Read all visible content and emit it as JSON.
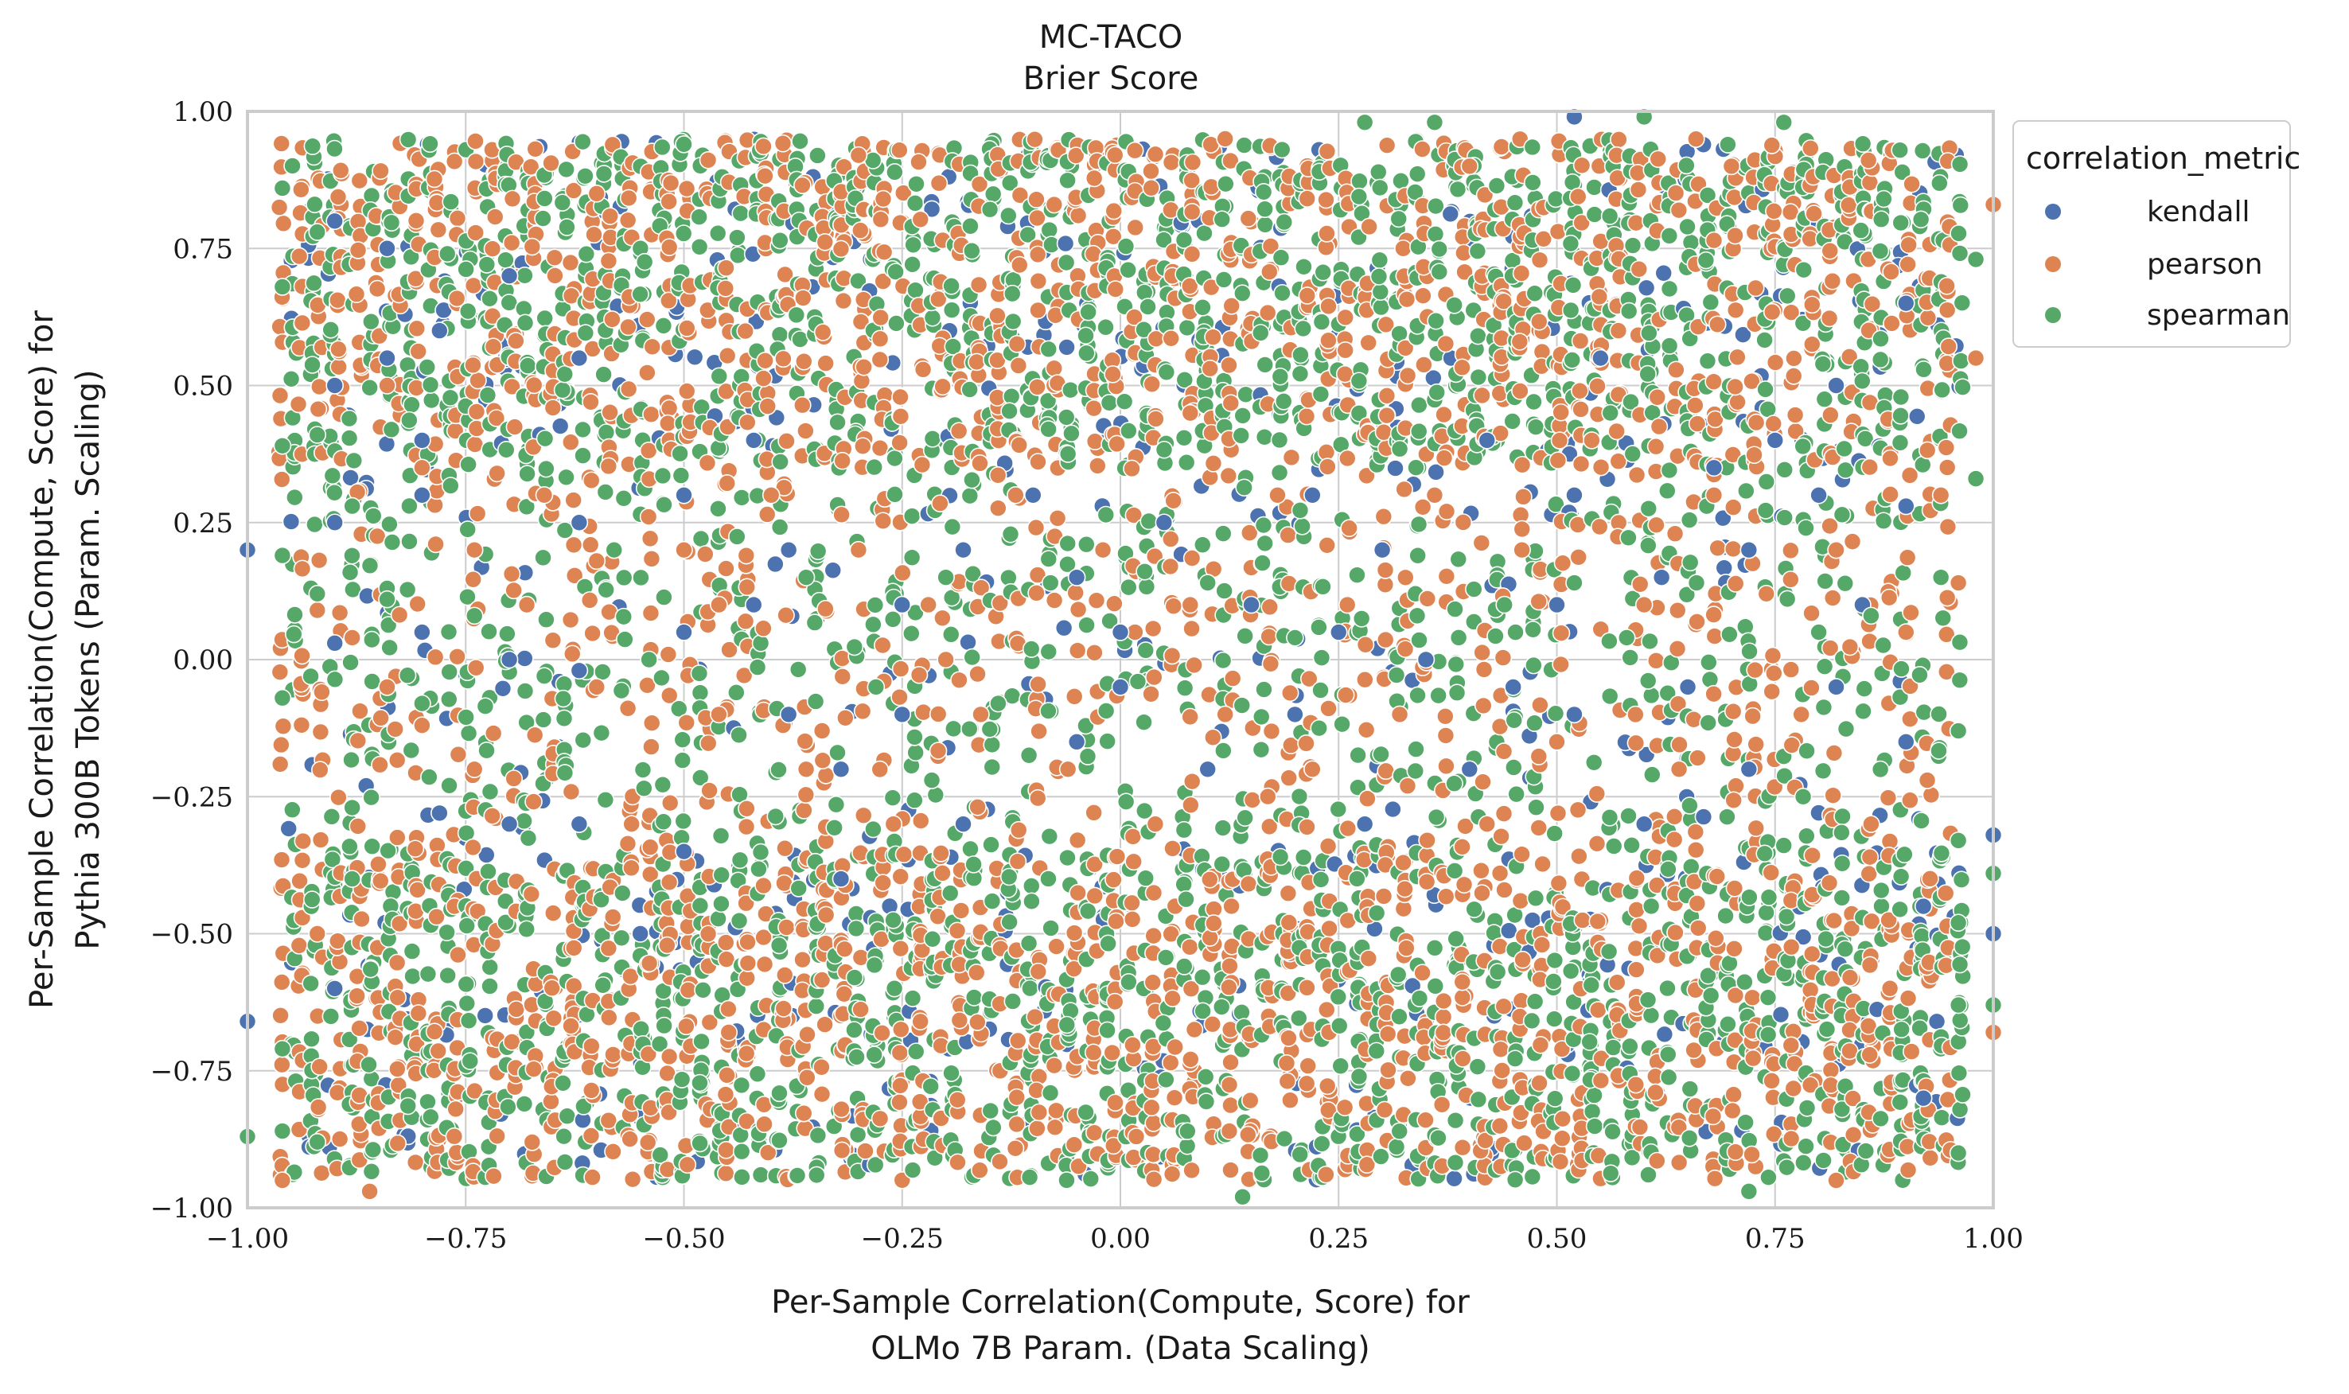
{
  "chart_data": {
    "type": "scatter",
    "title": "MC-TACO",
    "subtitle": "Brier Score",
    "xlabel_lines": [
      "Per-Sample Correlation(Compute, Score) for",
      "OLMo 7B Param. (Data Scaling)"
    ],
    "ylabel_lines": [
      "Per-Sample Correlation(Compute, Score) for",
      "Pythia 300B Tokens (Param. Scaling)"
    ],
    "xlim": [
      -1.0,
      1.0
    ],
    "ylim": [
      -1.0,
      1.0
    ],
    "xticks": [
      -1.0,
      -0.75,
      -0.5,
      -0.25,
      0.0,
      0.25,
      0.5,
      0.75,
      1.0
    ],
    "yticks": [
      -1.0,
      -0.75,
      -0.5,
      -0.25,
      0.0,
      0.25,
      0.5,
      0.75,
      1.0
    ],
    "xtick_labels": [
      "−1.00",
      "−0.75",
      "−0.50",
      "−0.25",
      "0.00",
      "0.25",
      "0.50",
      "0.75",
      "1.00"
    ],
    "ytick_labels": [
      "−1.00",
      "−0.75",
      "−0.50",
      "−0.25",
      "0.00",
      "0.25",
      "0.50",
      "0.75",
      "1.00"
    ],
    "grid": true,
    "legend": {
      "title": "correlation_metric",
      "placement": "outside-top-right",
      "entries": [
        "kendall",
        "pearson",
        "spearman"
      ]
    },
    "series": [
      {
        "name": "kendall",
        "color": "#4c72b0",
        "points": [
          [
            -0.9,
            0.8
          ],
          [
            -0.9,
            0.5
          ],
          [
            -0.9,
            0.25
          ],
          [
            -0.9,
            0.03
          ],
          [
            -0.9,
            -0.6
          ],
          [
            -0.84,
            0.75
          ],
          [
            -0.84,
            0.55
          ],
          [
            -0.8,
            0.4
          ],
          [
            -0.8,
            0.3
          ],
          [
            -0.8,
            0.05
          ],
          [
            -0.78,
            0.6
          ],
          [
            -0.78,
            -0.28
          ],
          [
            -0.7,
            0.7
          ],
          [
            -0.7,
            0.0
          ],
          [
            -0.7,
            -0.3
          ],
          [
            -0.62,
            0.55
          ],
          [
            -0.62,
            0.25
          ],
          [
            -0.62,
            -0.02
          ],
          [
            -0.62,
            -0.3
          ],
          [
            -0.55,
            -0.5
          ],
          [
            -0.5,
            0.3
          ],
          [
            -0.5,
            0.05
          ],
          [
            -0.5,
            -0.35
          ],
          [
            -0.42,
            0.4
          ],
          [
            -0.42,
            0.1
          ],
          [
            -0.38,
            0.2
          ],
          [
            -0.38,
            -0.1
          ],
          [
            -0.32,
            -0.2
          ],
          [
            -0.32,
            -0.4
          ],
          [
            -0.25,
            0.1
          ],
          [
            -0.25,
            -0.1
          ],
          [
            -0.18,
            0.2
          ],
          [
            -0.18,
            -0.3
          ],
          [
            -0.1,
            0.3
          ],
          [
            -0.05,
            0.15
          ],
          [
            -0.05,
            -0.15
          ],
          [
            0.0,
            0.05
          ],
          [
            0.0,
            -0.05
          ],
          [
            0.05,
            0.25
          ],
          [
            0.1,
            -0.2
          ],
          [
            0.15,
            0.1
          ],
          [
            0.2,
            -0.1
          ],
          [
            0.22,
            0.3
          ],
          [
            0.25,
            0.05
          ],
          [
            0.28,
            -0.3
          ],
          [
            0.3,
            0.2
          ],
          [
            0.35,
            0.0
          ],
          [
            0.4,
            -0.2
          ],
          [
            0.42,
            0.4
          ],
          [
            0.45,
            -0.05
          ],
          [
            0.5,
            0.1
          ],
          [
            0.52,
            -0.1
          ],
          [
            0.52,
            0.3
          ],
          [
            0.55,
            0.55
          ],
          [
            0.6,
            -0.3
          ],
          [
            0.62,
            0.15
          ],
          [
            0.65,
            -0.05
          ],
          [
            0.68,
            0.35
          ],
          [
            0.72,
            0.2
          ],
          [
            0.72,
            -0.2
          ],
          [
            0.75,
            0.4
          ],
          [
            0.8,
            0.3
          ],
          [
            0.82,
            0.5
          ],
          [
            0.82,
            -0.05
          ],
          [
            0.85,
            0.1
          ],
          [
            0.9,
            -0.15
          ],
          [
            0.9,
            0.28
          ],
          [
            0.9,
            0.65
          ],
          [
            0.92,
            -0.45
          ],
          [
            0.92,
            -0.8
          ],
          [
            1.0,
            -0.32
          ],
          [
            1.0,
            -0.5
          ],
          [
            -1.0,
            0.2
          ],
          [
            -1.0,
            -0.66
          ],
          [
            0.52,
            0.99
          ]
        ]
      },
      {
        "name": "pearson",
        "color": "#dd8452",
        "points": [
          [
            -0.96,
            -0.95
          ],
          [
            -0.92,
            0.09
          ],
          [
            -0.92,
            -0.5
          ],
          [
            -0.88,
            0.04
          ],
          [
            -0.86,
            -0.97
          ],
          [
            -0.84,
            0.5
          ],
          [
            -0.84,
            -0.05
          ],
          [
            -0.8,
            0.35
          ],
          [
            -0.8,
            -0.12
          ],
          [
            -0.74,
            0.2
          ],
          [
            -0.74,
            -0.2
          ],
          [
            -0.68,
            0.1
          ],
          [
            -0.66,
            0.3
          ],
          [
            -0.6,
            -0.05
          ],
          [
            -0.6,
            0.18
          ],
          [
            -0.56,
            -0.3
          ],
          [
            -0.5,
            0.2
          ],
          [
            -0.46,
            -0.1
          ],
          [
            -0.46,
            0.1
          ],
          [
            -0.4,
            0.3
          ],
          [
            -0.36,
            -0.2
          ],
          [
            -0.3,
            0.2
          ],
          [
            -0.26,
            -0.3
          ],
          [
            -0.22,
            0.1
          ],
          [
            -0.16,
            -0.1
          ],
          [
            -0.12,
            0.3
          ],
          [
            -0.06,
            -0.2
          ],
          [
            -0.02,
            0.2
          ],
          [
            0.04,
            -0.3
          ],
          [
            0.08,
            0.1
          ],
          [
            0.12,
            -0.1
          ],
          [
            0.18,
            0.3
          ],
          [
            0.22,
            -0.2
          ],
          [
            0.26,
            0.1
          ],
          [
            0.32,
            -0.1
          ],
          [
            0.36,
            0.3
          ],
          [
            0.42,
            -0.3
          ],
          [
            0.46,
            0.2
          ],
          [
            0.5,
            -0.15
          ],
          [
            0.54,
            0.4
          ],
          [
            0.6,
            0.1
          ],
          [
            0.64,
            -0.2
          ],
          [
            0.68,
            0.3
          ],
          [
            0.74,
            0.12
          ],
          [
            0.78,
            -0.1
          ],
          [
            0.82,
            0.2
          ],
          [
            0.82,
            -0.95
          ],
          [
            0.86,
            -0.3
          ],
          [
            0.9,
            0.05
          ],
          [
            0.94,
            0.3
          ],
          [
            0.96,
            0.14
          ],
          [
            0.98,
            0.55
          ],
          [
            1.0,
            0.83
          ],
          [
            1.0,
            -0.68
          ],
          [
            -0.2,
            0.0
          ],
          [
            0.12,
            0.95
          ],
          [
            0.4,
            0.9
          ],
          [
            -0.6,
            0.85
          ],
          [
            0.7,
            0.9
          ],
          [
            -0.3,
            0.92
          ]
        ]
      },
      {
        "name": "spearman",
        "color": "#55a868",
        "points": [
          [
            -0.96,
            0.86
          ],
          [
            -0.96,
            0.68
          ],
          [
            -0.96,
            0.39
          ],
          [
            -0.96,
            0.19
          ],
          [
            -0.96,
            -0.07
          ],
          [
            -0.96,
            -0.71
          ],
          [
            -0.96,
            -0.86
          ],
          [
            -0.92,
            0.78
          ],
          [
            -0.92,
            0.41
          ],
          [
            -0.92,
            0.12
          ],
          [
            -0.92,
            -0.88
          ],
          [
            -0.88,
            0.28
          ],
          [
            -0.88,
            -0.27
          ],
          [
            -0.88,
            -0.4
          ],
          [
            -0.84,
            0.13
          ],
          [
            -0.84,
            0.11
          ],
          [
            -0.8,
            -0.08
          ],
          [
            -0.74,
            0.08
          ],
          [
            -0.66,
            -0.03
          ],
          [
            -0.58,
            0.2
          ],
          [
            -0.54,
            0.0
          ],
          [
            -0.5,
            0.94
          ],
          [
            -0.44,
            -0.06
          ],
          [
            -0.36,
            0.15
          ],
          [
            -0.28,
            -0.05
          ],
          [
            -0.2,
            0.15
          ],
          [
            -0.14,
            -0.08
          ],
          [
            -0.08,
            0.14
          ],
          [
            0.02,
            -0.04
          ],
          [
            0.1,
            0.14
          ],
          [
            0.14,
            -0.98
          ],
          [
            0.2,
            0.04
          ],
          [
            0.28,
            0.98
          ],
          [
            0.34,
            0.08
          ],
          [
            0.36,
            0.98
          ],
          [
            0.44,
            0.1
          ],
          [
            0.52,
            0.14
          ],
          [
            0.58,
            0.04
          ],
          [
            0.6,
            0.99
          ],
          [
            0.66,
            0.14
          ],
          [
            0.72,
            -0.97
          ],
          [
            0.76,
            0.98
          ],
          [
            0.8,
            0.05
          ],
          [
            0.86,
            0.08
          ],
          [
            0.94,
            0.15
          ],
          [
            0.96,
            -0.13
          ],
          [
            0.96,
            -0.33
          ],
          [
            0.96,
            -0.48
          ],
          [
            0.96,
            -0.63
          ],
          [
            0.96,
            -0.9
          ],
          [
            0.98,
            0.33
          ],
          [
            0.98,
            0.73
          ],
          [
            1.0,
            -0.39
          ],
          [
            1.0,
            -0.63
          ],
          [
            -1.0,
            -0.87
          ]
        ]
      }
    ]
  }
}
